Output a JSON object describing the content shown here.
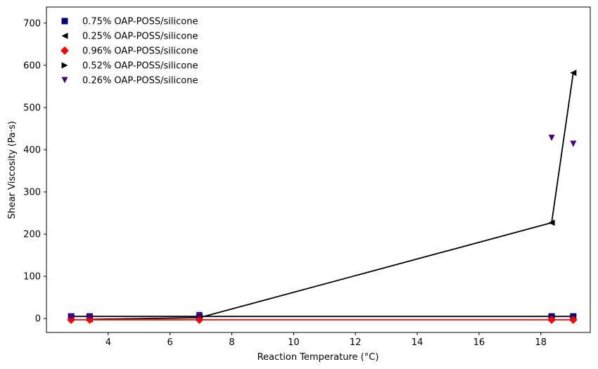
{
  "chart_data": {
    "type": "scatter",
    "title": "",
    "xlabel": "Reaction Temperature (°C)",
    "ylabel": "Shear Viscosity (Pa·s)",
    "xlim": [
      2.0,
      19.6
    ],
    "ylim": [
      -33,
      738
    ],
    "x_ticks": [
      4,
      6,
      8,
      10,
      12,
      14,
      16,
      18
    ],
    "x_tick_labels": [
      "4",
      "6",
      "8",
      "10",
      "12",
      "14",
      "16",
      "18"
    ],
    "y_ticks": [
      0,
      100,
      200,
      300,
      400,
      500,
      600,
      700
    ],
    "y_tick_labels": [
      "0",
      "100",
      "200",
      "300",
      "400",
      "500",
      "600",
      "700"
    ],
    "grid": false,
    "legend_position": "top-left",
    "series": [
      {
        "name": "0.75% OAP-POSS/silicone",
        "marker": "square",
        "color": "#000080",
        "line": true,
        "line_color": "#000000",
        "points": [
          [
            2.8,
            5
          ],
          [
            3.4,
            5
          ],
          [
            6.95,
            5
          ],
          [
            18.35,
            5
          ],
          [
            19.05,
            5
          ]
        ]
      },
      {
        "name": "0.25% OAP-POSS/silicone",
        "marker": "triangle-left",
        "color": "#000000",
        "line": true,
        "line_color": "#000000",
        "points": [
          [
            3.4,
            -2
          ],
          [
            6.95,
            2
          ],
          [
            18.35,
            227
          ],
          [
            19.05,
            582
          ]
        ]
      },
      {
        "name": "0.96% OAP-POSS/silicone",
        "marker": "diamond",
        "color": "#ff0000",
        "line": true,
        "line_color": "#ff0000",
        "points": [
          [
            2.8,
            -3
          ],
          [
            3.4,
            -3
          ],
          [
            6.95,
            -3
          ],
          [
            18.35,
            -3
          ],
          [
            19.05,
            -3
          ]
        ]
      },
      {
        "name": "0.52% OAP-POSS/silicone",
        "marker": "triangle-right",
        "color": "#000000",
        "line": false,
        "points": []
      },
      {
        "name": "0.26% OAP-POSS/silicone",
        "marker": "triangle-down",
        "color": "#4b0082",
        "line": false,
        "points": [
          [
            2.8,
            4
          ],
          [
            3.4,
            4
          ],
          [
            6.95,
            8
          ],
          [
            18.35,
            428
          ],
          [
            19.05,
            414
          ]
        ]
      }
    ]
  }
}
